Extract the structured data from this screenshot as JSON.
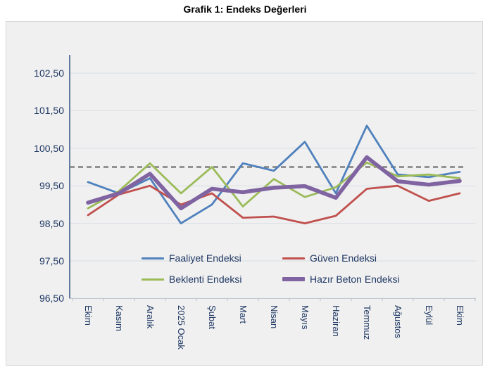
{
  "page": {
    "title": "Grafik 1: Endeks Değerleri"
  },
  "chart_data": {
    "type": "line",
    "title": "Grafik 1: Endeks Değerleri",
    "xlabel": "",
    "ylabel": "",
    "grid": true,
    "legend_position": "inside-bottom",
    "categories": [
      "Ekim",
      "Kasım",
      "Aralık",
      "2025 Ocak",
      "Şubat",
      "Mart",
      "Nisan",
      "Mayıs",
      "Haziran",
      "Temmuz",
      "Ağustos",
      "Eylül",
      "Ekim"
    ],
    "series": [
      {
        "name": "Faaliyet Endeksi",
        "color": "#4F81BD",
        "line_width": 2.8,
        "values": [
          99.6,
          99.3,
          99.7,
          98.5,
          99.0,
          100.1,
          99.9,
          100.67,
          99.3,
          101.1,
          99.8,
          99.73,
          99.87
        ]
      },
      {
        "name": "Güven Endeksi",
        "color": "#C0504D",
        "line_width": 2.8,
        "values": [
          98.72,
          99.27,
          99.5,
          99.0,
          99.3,
          98.65,
          98.68,
          98.5,
          98.7,
          99.42,
          99.5,
          99.1,
          99.3
        ]
      },
      {
        "name": "Beklenti Endeksi",
        "color": "#9BBB59",
        "line_width": 2.8,
        "values": [
          98.9,
          99.36,
          100.1,
          99.3,
          100.0,
          98.95,
          99.68,
          99.2,
          99.46,
          100.12,
          99.75,
          99.8,
          99.7
        ]
      },
      {
        "name": "Hazır Beton Endeksi",
        "color": "#8064A2",
        "line_width": 5.6,
        "values": [
          99.05,
          99.3,
          99.82,
          98.9,
          99.42,
          99.33,
          99.45,
          99.49,
          99.18,
          100.26,
          99.62,
          99.53,
          99.63
        ]
      }
    ],
    "y_axis": {
      "min": 96.5,
      "max": 102.5,
      "step": 1.0,
      "tick_labels": [
        "102,50",
        "101,50",
        "100,50",
        "99,50",
        "98,50",
        "97,50",
        "96,50"
      ]
    },
    "reference_line": {
      "value": 100.0,
      "style": "dashed",
      "color": "#7F7F7F"
    },
    "style": {
      "plot_background": "#F0F0F0",
      "grid_color": "#D9DEE5",
      "y_axis_line_color": "#27497A",
      "x_axis_line_color": "#BCC5D0",
      "label_color": "#1F3864",
      "title_color": "#000000"
    }
  }
}
